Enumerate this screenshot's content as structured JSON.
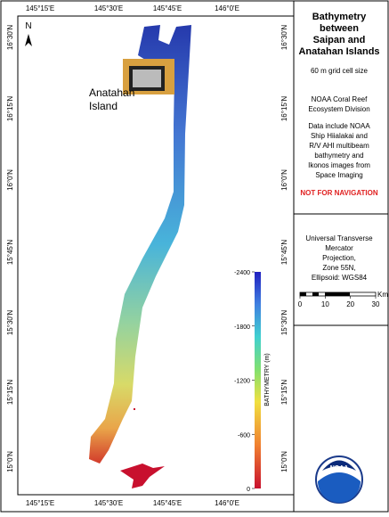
{
  "map": {
    "lon_labels": [
      "145°15'E",
      "145°30'E",
      "145°45'E",
      "146°0'E"
    ],
    "lat_labels": [
      "16°30'N",
      "16°15'N",
      "16°0'N",
      "15°45'N",
      "15°30'N",
      "15°15'N",
      "15°0'N"
    ],
    "north": "N",
    "place_label": [
      "Anatahan",
      "Island"
    ]
  },
  "legend": {
    "title": "BATHYMETRY (m)",
    "ylim": [
      0,
      -2400
    ],
    "ticks": [
      -2400,
      -1800,
      -1200,
      -600,
      0
    ]
  },
  "scale_bar": {
    "unit": "Km",
    "ticks": [
      0,
      10,
      20,
      30
    ]
  },
  "panel": {
    "title": [
      "Bathymetry",
      "between",
      "Saipan and",
      "Anatahan Islands"
    ],
    "cell_size": "60 m grid cell size",
    "division": [
      "NOAA Coral Reef",
      "Ecosystem Division"
    ],
    "data_note": [
      "Data include NOAA",
      "Ship Hiialakai and",
      "R/V AHI multibeam",
      "bathymetry and",
      "Ikonos images from",
      "Space Imaging"
    ],
    "warning": "NOT FOR NAVIGATION",
    "projection": [
      "Universal Transverse",
      "Mercator",
      "Projection,",
      "Zone 55N,",
      "Ellipsoid: WGS84"
    ]
  },
  "logo": "NOAA"
}
